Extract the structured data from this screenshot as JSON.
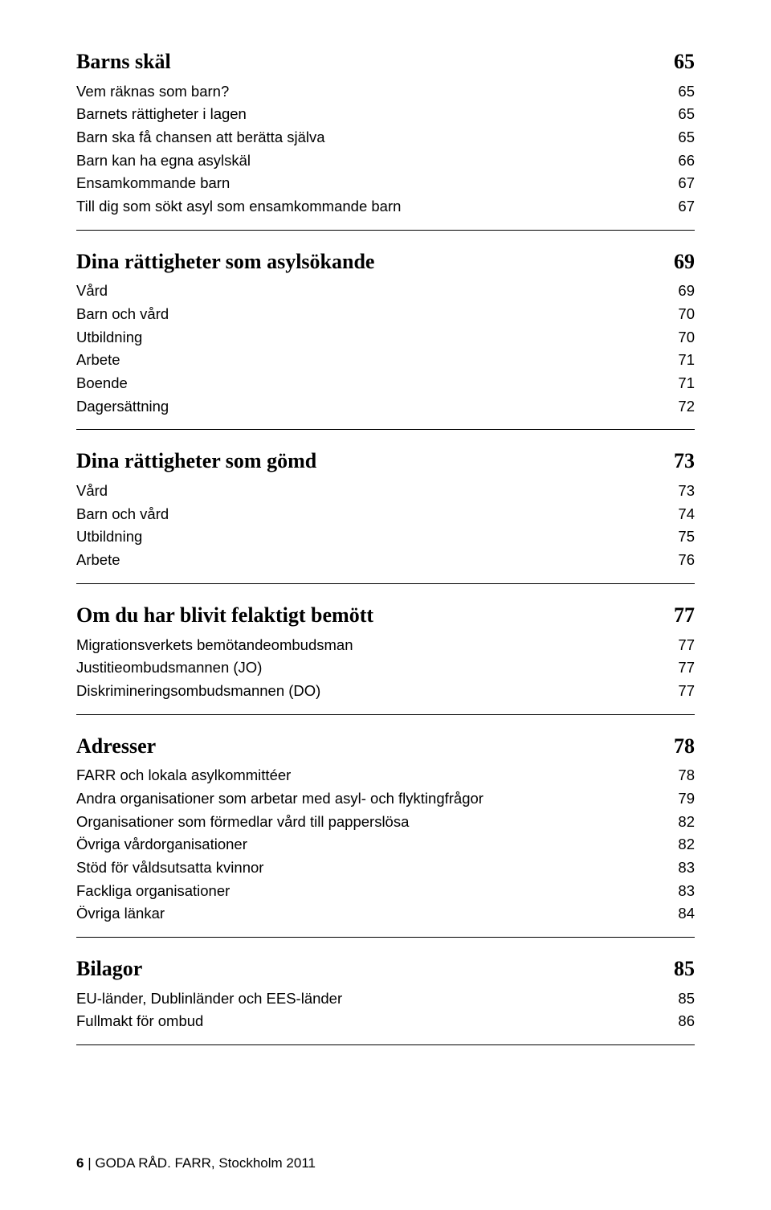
{
  "sections": [
    {
      "heading": {
        "label": "Barns skäl",
        "page": "65"
      },
      "items": [
        {
          "label": "Vem räknas som barn?",
          "page": "65"
        },
        {
          "label": "Barnets rättigheter i lagen",
          "page": "65"
        },
        {
          "label": "Barn ska få chansen att berätta själva",
          "page": "65"
        },
        {
          "label": "Barn kan ha egna asylskäl",
          "page": "66"
        },
        {
          "label": "Ensamkommande barn",
          "page": "67"
        },
        {
          "label": "Till dig som sökt asyl som ensamkommande barn",
          "page": "67"
        }
      ]
    },
    {
      "heading": {
        "label": "Dina rättigheter som asylsökande",
        "page": "69"
      },
      "items": [
        {
          "label": "Vård",
          "page": "69"
        },
        {
          "label": "Barn och vård",
          "page": "70"
        },
        {
          "label": "Utbildning",
          "page": "70"
        },
        {
          "label": "Arbete",
          "page": "71"
        },
        {
          "label": "Boende",
          "page": "71"
        },
        {
          "label": "Dagersättning",
          "page": "72"
        }
      ]
    },
    {
      "heading": {
        "label": "Dina rättigheter som gömd",
        "page": "73"
      },
      "items": [
        {
          "label": "Vård",
          "page": "73"
        },
        {
          "label": "Barn och vård",
          "page": "74"
        },
        {
          "label": "Utbildning",
          "page": "75"
        },
        {
          "label": "Arbete",
          "page": "76"
        }
      ]
    },
    {
      "heading": {
        "label": "Om du har blivit felaktigt bemött",
        "page": "77"
      },
      "items": [
        {
          "label": "Migrationsverkets bemötandeombudsman",
          "page": "77"
        },
        {
          "label": "Justitieombudsmannen (JO)",
          "page": "77"
        },
        {
          "label": "Diskrimineringsombudsmannen (DO)",
          "page": "77"
        }
      ]
    },
    {
      "heading": {
        "label": "Adresser",
        "page": "78"
      },
      "items": [
        {
          "label": "FARR och lokala asylkommittéer",
          "page": "78"
        },
        {
          "label": "Andra organisationer som arbetar med asyl- och flyktingfrågor",
          "page": "79"
        },
        {
          "label": "Organisationer som förmedlar vård till papperslösa",
          "page": "82"
        },
        {
          "label": "Övriga vårdorganisationer",
          "page": "82"
        },
        {
          "label": "Stöd för våldsutsatta kvinnor",
          "page": "83"
        },
        {
          "label": "Fackliga organisationer",
          "page": "83"
        },
        {
          "label": "Övriga länkar",
          "page": "84"
        }
      ]
    },
    {
      "heading": {
        "label": "Bilagor",
        "page": "85"
      },
      "items": [
        {
          "label": "EU-länder, Dublinländer och EES-länder",
          "page": "85"
        },
        {
          "label": "Fullmakt för ombud",
          "page": "86"
        }
      ]
    }
  ],
  "footer": {
    "page_number": "6",
    "title": "GODA RÅD.",
    "publisher": "FARR, Stockholm 2011"
  }
}
